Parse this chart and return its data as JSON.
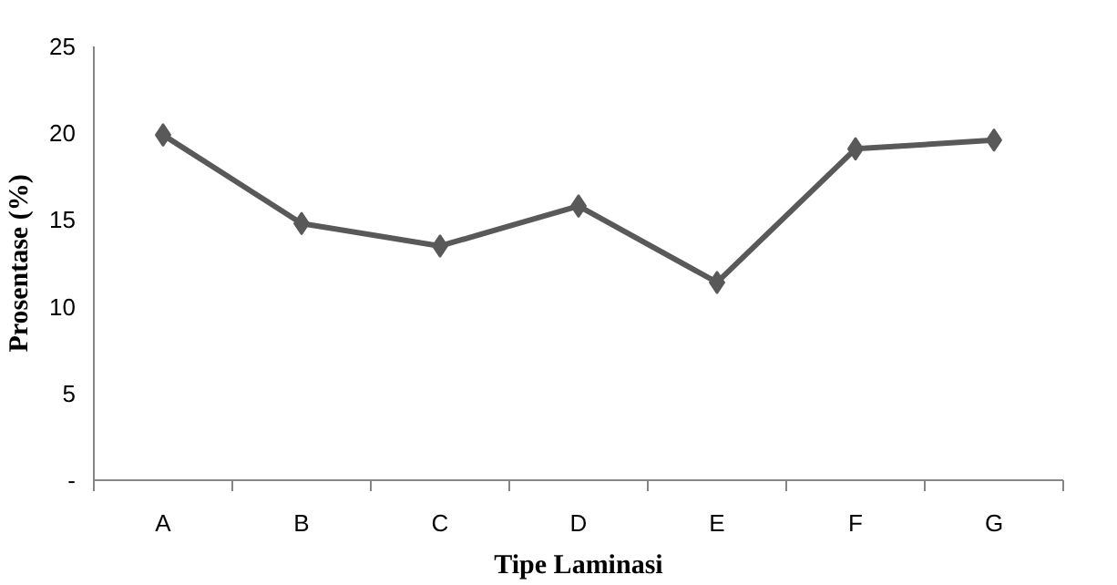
{
  "chart_data": {
    "type": "line",
    "xlabel": "Tipe Laminasi",
    "ylabel": "Prosentase (%)",
    "categories": [
      "A",
      "B",
      "C",
      "D",
      "E",
      "F",
      "G"
    ],
    "series": [
      {
        "color": "#595959",
        "values": [
          19.9,
          14.8,
          13.5,
          15.8,
          11.4,
          19.1,
          19.6
        ]
      }
    ],
    "ylim": [
      0,
      25
    ],
    "yticks": [
      {
        "value": 0,
        "label": "-"
      },
      5,
      10,
      15,
      20,
      25
    ],
    "grid": false,
    "marker": "diamond",
    "line_style": "solid"
  }
}
